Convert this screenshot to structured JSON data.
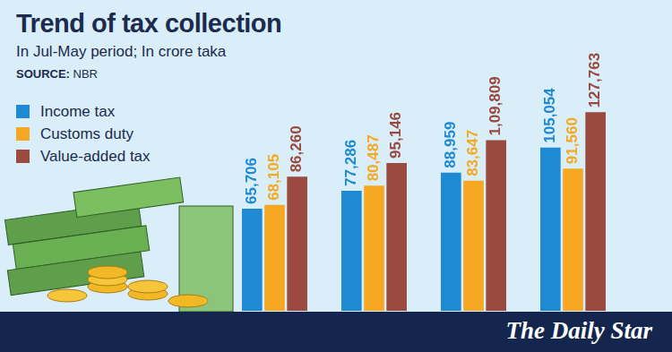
{
  "chart_data": {
    "type": "bar",
    "title": "Trend of tax collection",
    "subtitle": "In Jul-May period; In crore taka",
    "annotations": [
      "SOURCE: NBR",
      "The Daily Star"
    ],
    "categories": [
      null,
      null,
      null,
      null
    ],
    "series": [
      {
        "name": "Income tax",
        "color": "#1e8ad3",
        "values": [
          65706,
          77286,
          88959,
          105054
        ],
        "value_labels": [
          "65,706",
          "77,286",
          "88,959",
          "105,054"
        ]
      },
      {
        "name": "Customs duty",
        "color": "#f7a823",
        "values": [
          68105,
          80487,
          83647,
          91560
        ],
        "value_labels": [
          "68,105",
          "80,487",
          "83,647",
          "91,560"
        ]
      },
      {
        "name": "Value-added tax",
        "color": "#9b4a3f",
        "values": [
          86260,
          95146,
          109809,
          127763
        ],
        "value_labels": [
          "86,260",
          "95,146",
          "1,09,809",
          "127,763"
        ]
      }
    ],
    "ylim": [
      0,
      200000
    ],
    "grid": false,
    "legend": "top-left",
    "data_labels": true,
    "tick_labels": false
  }
}
